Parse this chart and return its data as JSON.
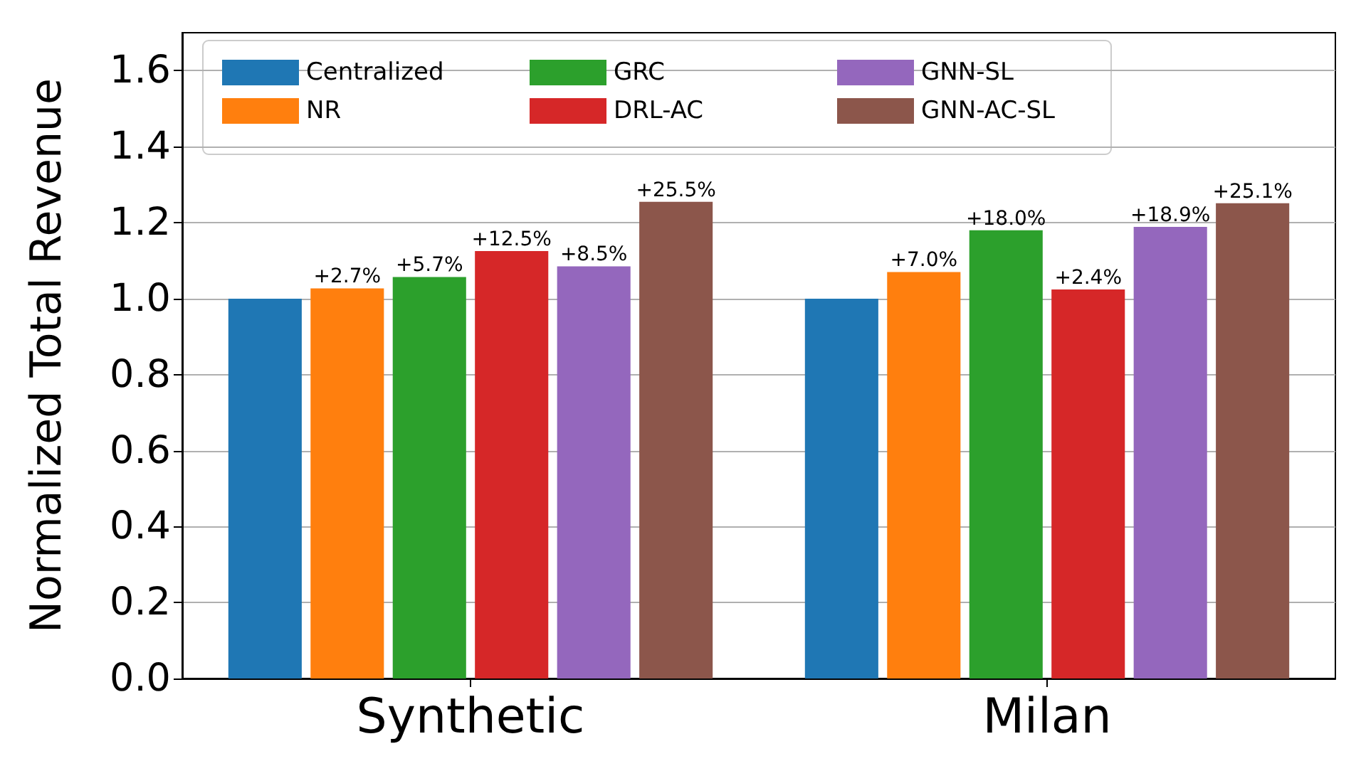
{
  "chart_data": {
    "type": "bar",
    "ylabel": "Normalized Total Revenue",
    "categories": [
      "Synthetic",
      "Milan"
    ],
    "series": [
      {
        "name": "Centralized",
        "color": "#1f77b4",
        "values": [
          1.0,
          1.0
        ]
      },
      {
        "name": "NR",
        "color": "#ff7f0e",
        "values": [
          1.027,
          1.07
        ]
      },
      {
        "name": "GRC",
        "color": "#2ca02c",
        "values": [
          1.057,
          1.18
        ]
      },
      {
        "name": "DRL-AC",
        "color": "#d62728",
        "values": [
          1.125,
          1.024
        ]
      },
      {
        "name": "GNN-SL",
        "color": "#9467bd",
        "values": [
          1.085,
          1.189
        ]
      },
      {
        "name": "GNN-AC-SL",
        "color": "#8c564b",
        "values": [
          1.255,
          1.251
        ]
      }
    ],
    "annotations": [
      "+2.7%",
      "+5.7%",
      "+12.5%",
      "+8.5%",
      "+25.5%",
      "+7.0%",
      "+18.0%",
      "+2.4%",
      "+18.9%",
      "+25.1%"
    ],
    "ylim": [
      0,
      1.7
    ],
    "yticks": [
      {
        "value": 0,
        "label": "0.0"
      },
      0.2,
      0.4,
      0.6,
      0.8,
      {
        "value": 1,
        "label": "1.0"
      },
      1.2,
      1.4,
      1.6
    ],
    "grid": "y",
    "legend": "top left"
  }
}
